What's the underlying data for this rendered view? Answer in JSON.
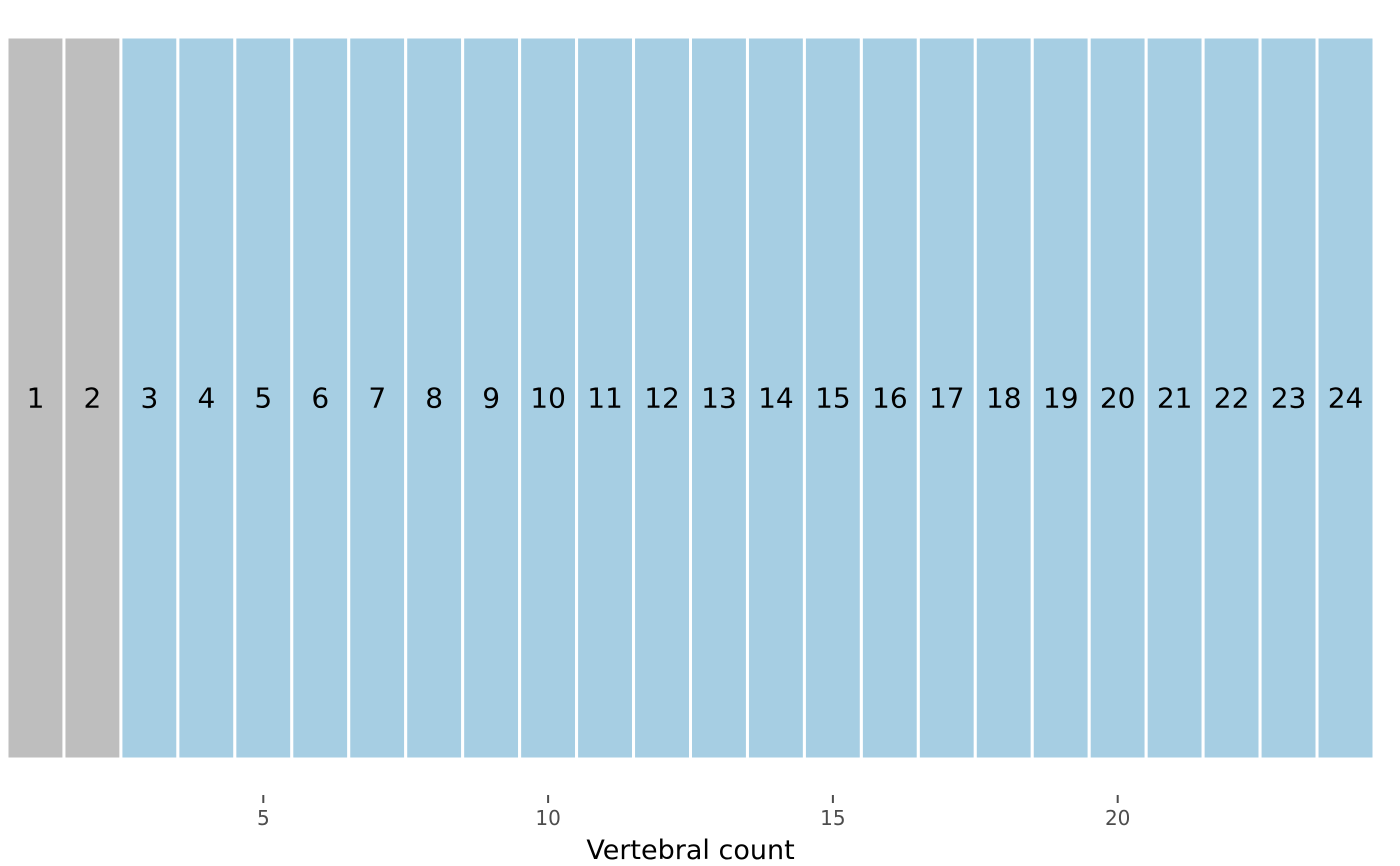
{
  "chart_data": {
    "type": "bar",
    "title": "",
    "xlabel": "Vertebral count",
    "ylabel": "",
    "categories": [
      1,
      2,
      3,
      4,
      5,
      6,
      7,
      8,
      9,
      10,
      11,
      12,
      13,
      14,
      15,
      16,
      17,
      18,
      19,
      20,
      21,
      22,
      23,
      24
    ],
    "cell_labels": [
      "1",
      "2",
      "3",
      "4",
      "5",
      "6",
      "7",
      "8",
      "9",
      "10",
      "11",
      "12",
      "13",
      "14",
      "15",
      "16",
      "17",
      "18",
      "19",
      "20",
      "21",
      "22",
      "23",
      "24"
    ],
    "groups": [
      "grey",
      "grey",
      "blue",
      "blue",
      "blue",
      "blue",
      "blue",
      "blue",
      "blue",
      "blue",
      "blue",
      "blue",
      "blue",
      "blue",
      "blue",
      "blue",
      "blue",
      "blue",
      "blue",
      "blue",
      "blue",
      "blue",
      "blue",
      "blue"
    ],
    "x_ticks": [
      5,
      10,
      15,
      20
    ],
    "x_tick_labels": [
      "5",
      "10",
      "15",
      "20"
    ],
    "xlim": [
      0.5,
      24.5
    ],
    "grid": false,
    "legend": "none",
    "colors": {
      "grey": "#bebebe",
      "blue": "#a6cee3",
      "separator": "#ffffff",
      "tick": "#4d4d4d"
    }
  }
}
